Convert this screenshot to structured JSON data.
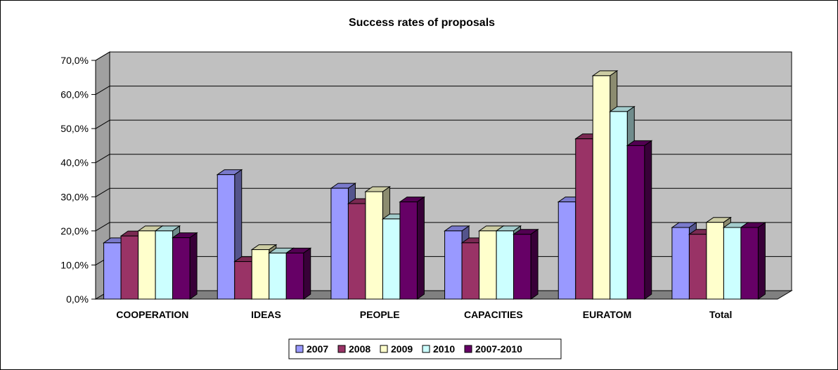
{
  "chart_data": {
    "type": "bar",
    "title": "Success rates of proposals",
    "xlabel": "",
    "ylabel": "",
    "ylim": [
      0,
      70
    ],
    "yticks": [
      "0,0%",
      "10,0%",
      "20,0%",
      "30,0%",
      "40,0%",
      "50,0%",
      "60,0%",
      "70,0%"
    ],
    "ytick_values": [
      0,
      10,
      20,
      30,
      40,
      50,
      60,
      70
    ],
    "grid": true,
    "legend_position": "bottom",
    "categories": [
      "COOPERATION",
      "IDEAS",
      "PEOPLE",
      "CAPACITIES",
      "EURATOM",
      "Total"
    ],
    "series": [
      {
        "name": "2007",
        "color": "#9999ff",
        "values": [
          16.5,
          36.5,
          32.5,
          20.0,
          28.5,
          21.0
        ]
      },
      {
        "name": "2008",
        "color": "#993366",
        "values": [
          18.5,
          11.0,
          28.0,
          16.5,
          47.0,
          19.0
        ]
      },
      {
        "name": "2009",
        "color": "#ffffcc",
        "values": [
          20.0,
          14.5,
          31.5,
          20.0,
          65.5,
          22.5
        ]
      },
      {
        "name": "2010",
        "color": "#ccffff",
        "values": [
          20.0,
          13.5,
          23.5,
          20.0,
          55.0,
          21.0
        ]
      },
      {
        "name": "2007-2010",
        "color": "#660066",
        "values": [
          18.0,
          13.5,
          28.5,
          19.0,
          45.0,
          21.0
        ]
      }
    ]
  }
}
